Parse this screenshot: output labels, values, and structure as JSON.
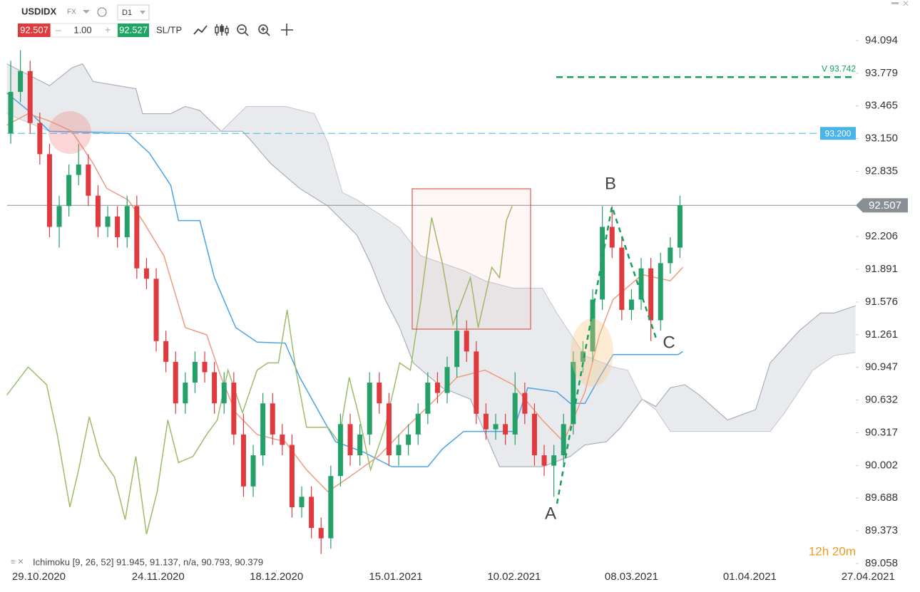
{
  "chart_data": {
    "type": "candlestick",
    "symbol": "USDIDX",
    "market": "FX",
    "timeframe": "D1",
    "bid": 92.507,
    "ask": 92.527,
    "quantity": "1.00",
    "sltp": "SL/TP",
    "indicator_legend": "Ichimoku [9, 26, 52] 91.945, 91.137, n/a, 90.793, 90.379",
    "countdown": "12h 20m",
    "wave_labels": [
      "A",
      "B",
      "C"
    ],
    "up_color": "#26a069",
    "down_color": "#e03a3e",
    "xlim": [
      -0.37,
      87.13
    ],
    "ylim": [
      88.996,
      94.224
    ],
    "xticks": [
      {
        "value": 2.9,
        "label": "29.10.2020"
      },
      {
        "value": 15.2,
        "label": "24.11.2020"
      },
      {
        "value": 27.4,
        "label": "18.12.2020"
      },
      {
        "value": 39.7,
        "label": "15.01.2021"
      },
      {
        "value": 51.9,
        "label": "10.02.2021"
      },
      {
        "value": 64.0,
        "label": "08.03.2021"
      },
      {
        "value": 76.2,
        "label": "01.04.2021"
      },
      {
        "value": 88.4,
        "label": "27.04.2021"
      }
    ],
    "yticks": [
      94.094,
      93.779,
      93.465,
      {
        "value": 93.15,
        "label": "93.150"
      },
      92.835,
      92.206,
      91.891,
      91.576,
      91.261,
      90.947,
      90.632,
      90.317,
      90.002,
      89.688,
      89.373,
      89.058
    ],
    "open": [
      93.2,
      93.6,
      93.8,
      93.3,
      93.0,
      92.3,
      92.5,
      92.8,
      92.9,
      92.6,
      92.3,
      92.4,
      92.2,
      92.5,
      91.9,
      91.8,
      91.2,
      91.0,
      90.6,
      90.8,
      91.0,
      90.9,
      90.6,
      90.8,
      90.3,
      89.8,
      90.1,
      90.6,
      90.3,
      90.2,
      89.6,
      89.7,
      89.4,
      89.3,
      89.9,
      90.4,
      90.1,
      90.3,
      90.8,
      90.6,
      90.1,
      90.2,
      90.3,
      90.5,
      90.8,
      90.7,
      90.95,
      91.3,
      91.1,
      90.5,
      90.35,
      90.4,
      90.3,
      90.7,
      90.5,
      90.1,
      90.0,
      90.1,
      90.4,
      91.0,
      91.1,
      91.6,
      92.3,
      92.1,
      91.5,
      91.6,
      91.9,
      91.4,
      91.95,
      92.1
    ],
    "high": [
      93.9,
      94.0,
      93.9,
      93.4,
      93.1,
      92.6,
      92.9,
      93.1,
      93.0,
      92.7,
      92.5,
      92.5,
      92.6,
      92.6,
      92.0,
      91.9,
      91.3,
      91.1,
      90.9,
      91.1,
      91.1,
      91.0,
      90.9,
      90.9,
      90.5,
      90.2,
      90.7,
      90.7,
      90.4,
      90.3,
      89.8,
      89.8,
      89.5,
      90.0,
      90.5,
      90.5,
      90.4,
      90.9,
      90.9,
      90.7,
      90.3,
      90.4,
      90.6,
      90.9,
      90.9,
      91.05,
      91.5,
      91.4,
      91.2,
      90.6,
      90.5,
      90.5,
      90.9,
      90.8,
      90.6,
      90.2,
      90.2,
      90.5,
      91.1,
      91.2,
      91.7,
      92.5,
      92.5,
      92.2,
      91.7,
      92.0,
      92.0,
      92.05,
      92.2,
      92.6
    ],
    "low": [
      93.1,
      93.5,
      93.2,
      92.9,
      92.2,
      92.1,
      92.4,
      92.7,
      92.5,
      92.2,
      92.2,
      92.1,
      92.1,
      91.8,
      91.7,
      91.1,
      90.9,
      90.5,
      90.5,
      90.7,
      90.8,
      90.5,
      90.5,
      90.2,
      89.7,
      89.7,
      90.0,
      90.2,
      90.1,
      89.5,
      89.5,
      89.3,
      89.15,
      89.2,
      89.8,
      90.0,
      90.0,
      90.2,
      90.5,
      90.0,
      90.0,
      90.1,
      90.2,
      90.4,
      90.6,
      90.6,
      90.85,
      91.0,
      90.4,
      90.25,
      90.25,
      90.2,
      90.2,
      90.4,
      90.0,
      89.9,
      89.7,
      90.0,
      90.3,
      90.9,
      91.0,
      91.5,
      92.0,
      91.4,
      91.4,
      91.5,
      91.2,
      91.3,
      91.85,
      92.0
    ],
    "close": [
      93.6,
      93.8,
      93.3,
      93.0,
      92.3,
      92.5,
      92.8,
      92.9,
      92.6,
      92.3,
      92.4,
      92.2,
      92.5,
      91.9,
      91.8,
      91.2,
      91.0,
      90.6,
      90.8,
      91.0,
      90.9,
      90.6,
      90.8,
      90.3,
      89.8,
      90.1,
      90.6,
      90.3,
      90.2,
      89.6,
      89.7,
      89.4,
      89.3,
      89.9,
      90.4,
      90.1,
      90.3,
      90.8,
      90.6,
      90.1,
      90.2,
      90.3,
      90.5,
      90.8,
      90.7,
      90.95,
      91.3,
      91.1,
      90.5,
      90.35,
      90.4,
      90.3,
      90.7,
      90.5,
      90.1,
      90.0,
      90.1,
      90.4,
      91.0,
      91.1,
      91.6,
      92.3,
      92.1,
      91.5,
      91.6,
      91.9,
      91.4,
      91.95,
      92.1,
      92.507
    ],
    "cloud": {
      "color": "#d5d9de",
      "x_a": [
        -0.4,
        4.0,
        6.3,
        7.4,
        8.5,
        12.9,
        13.6,
        16.5,
        18.0,
        19.5,
        21.7,
        23.9,
        24.6,
        26.8,
        29.8,
        32.7,
        35.7,
        37.1,
        38.6,
        40.1,
        41.5,
        44.5,
        47.4,
        50.4,
        54.8,
        57.7,
        59.2,
        61.4,
        62.9,
        65.1,
        66.5,
        68.0,
        69.5,
        71.0,
        73.9,
        76.8,
        78.3,
        81.3,
        83.5,
        84.9,
        87.1
      ],
      "span_a": [
        93.87,
        93.66,
        93.83,
        93.87,
        93.7,
        93.63,
        93.39,
        93.39,
        93.46,
        93.42,
        93.22,
        93.22,
        93.15,
        92.91,
        92.67,
        92.5,
        92.22,
        91.95,
        91.6,
        91.33,
        90.99,
        90.75,
        90.64,
        89.99,
        89.99,
        90.09,
        90.2,
        90.23,
        90.37,
        90.64,
        90.57,
        90.75,
        90.78,
        90.68,
        90.44,
        90.54,
        90.99,
        91.3,
        91.47,
        91.47,
        91.54
      ],
      "x_b": [
        -0.4,
        4.0,
        21.7,
        24.3,
        28.3,
        31.3,
        32.7,
        34.2,
        35.7,
        37.9,
        40.1,
        42.3,
        44.5,
        46.7,
        48.9,
        51.8,
        54.8,
        56.3,
        59.2,
        62.1,
        63.6,
        65.1,
        66.5,
        68.0,
        78.3,
        79.8,
        82.7,
        84.9,
        87.1
      ],
      "span_b": [
        93.39,
        93.22,
        93.22,
        93.46,
        93.46,
        93.39,
        93.11,
        92.63,
        92.56,
        92.43,
        92.29,
        92.02,
        91.95,
        91.88,
        91.78,
        91.71,
        91.71,
        91.47,
        91.06,
        90.95,
        90.92,
        90.64,
        90.54,
        90.33,
        90.33,
        90.51,
        90.92,
        91.06,
        91.09
      ]
    },
    "lines": [
      {
        "color": "#4aa3e8",
        "x": [
          -0.4,
          1.8,
          4.0,
          12.1,
          14.3,
          16.5,
          17.3,
          19.5,
          21.0,
          23.2,
          25.4,
          28.3,
          29.8,
          33.5,
          36.4,
          39.3,
          43.0,
          44.5,
          46.7,
          51.8,
          53.3,
          56.3,
          57.7,
          59.2,
          60.7,
          62.1,
          68.8,
          69.3
        ],
        "values": [
          93.59,
          93.42,
          93.22,
          93.2,
          93.01,
          92.7,
          92.36,
          92.36,
          91.81,
          91.33,
          91.19,
          91.18,
          90.85,
          90.23,
          90.13,
          89.99,
          89.99,
          90.16,
          90.33,
          90.33,
          90.75,
          90.71,
          90.6,
          90.6,
          90.85,
          91.07,
          91.07,
          91.1
        ]
      },
      {
        "color": "#ef9a80",
        "x": [
          -0.4,
          1.8,
          4.0,
          6.3,
          8.5,
          9.9,
          12.1,
          13.6,
          15.8,
          18.0,
          20.2,
          21.7,
          23.2,
          25.4,
          28.3,
          30.5,
          32.7,
          34.9,
          37.9,
          40.8,
          43.8,
          46.0,
          48.9,
          51.8,
          54.8,
          57.0,
          59.2,
          60.7,
          62.1,
          65.1,
          68.0,
          69.3
        ],
        "values": [
          93.28,
          93.39,
          93.32,
          93.22,
          92.91,
          92.67,
          92.56,
          92.36,
          92.02,
          91.33,
          91.26,
          90.85,
          90.51,
          90.3,
          90.23,
          89.96,
          89.75,
          89.89,
          90.09,
          90.37,
          90.64,
          90.85,
          90.92,
          90.78,
          90.44,
          90.23,
          90.71,
          91.26,
          91.6,
          91.84,
          91.78,
          91.91
        ]
      },
      {
        "color": "#9dbb6a",
        "x": [
          -0.4,
          1.8,
          3.7,
          4.8,
          6.1,
          7.0,
          8.1,
          9.2,
          10.7,
          11.8,
          12.9,
          14.0,
          15.1,
          16.2,
          17.3,
          18.8,
          20.2,
          21.3,
          22.4,
          23.9,
          25.4,
          26.5,
          27.6,
          28.5,
          29.4,
          30.5,
          32.7,
          33.8,
          34.9,
          36.0,
          37.1,
          38.6,
          40.1,
          41.2,
          42.3,
          43.4,
          44.5,
          45.6,
          47.4,
          48.2,
          49.6,
          50.4,
          51.1,
          51.7
        ],
        "values": [
          90.68,
          90.95,
          90.78,
          90.3,
          89.6,
          89.96,
          90.47,
          90.09,
          89.89,
          89.48,
          90.09,
          89.34,
          89.75,
          90.44,
          90.03,
          90.09,
          90.3,
          90.44,
          90.92,
          90.51,
          90.92,
          90.99,
          90.99,
          91.5,
          90.92,
          90.37,
          90.37,
          90.23,
          90.85,
          90.44,
          89.96,
          90.37,
          90.99,
          90.92,
          91.6,
          92.39,
          91.95,
          91.36,
          91.81,
          91.33,
          91.91,
          91.81,
          92.36,
          92.5
        ]
      }
    ],
    "levels": [
      {
        "value": 92.507,
        "color": "#8a8f96",
        "dash": false
      },
      {
        "value": 93.2,
        "label": "93.200",
        "color": "#4ab3e8",
        "dash": true
      },
      {
        "value": 93.742,
        "label": "V 93.742",
        "color": "#15a05c",
        "dash": true
      }
    ]
  }
}
